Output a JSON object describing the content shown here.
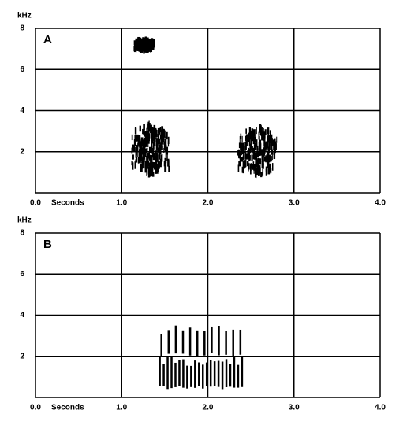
{
  "chart_data": [
    {
      "type": "spectrogram",
      "panel": "A",
      "ylabel": "kHz",
      "xlabel": "Seconds",
      "xlim": [
        0,
        4
      ],
      "ylim": [
        0,
        8
      ],
      "xticks": [
        {
          "value": 0,
          "label": "0.0"
        },
        {
          "value": 1,
          "label": "1.0"
        },
        {
          "value": 2,
          "label": "2.0"
        },
        {
          "value": 3,
          "label": "3.0"
        },
        {
          "value": 4,
          "label": "4.0"
        }
      ],
      "yticks": [
        2,
        4,
        6,
        8
      ],
      "grid": true,
      "color": "#000000",
      "events": [
        {
          "x": [
            1.15,
            1.38
          ],
          "y": [
            6.9,
            7.4
          ]
        },
        {
          "x": [
            1.12,
            1.55
          ],
          "y": [
            0.8,
            3.3
          ]
        },
        {
          "x": [
            2.35,
            2.8
          ],
          "y": [
            0.8,
            3.2
          ]
        }
      ]
    },
    {
      "type": "spectrogram",
      "panel": "B",
      "ylabel": "kHz",
      "xlabel": "Seconds",
      "xlim": [
        0,
        4
      ],
      "ylim": [
        0,
        8
      ],
      "xticks": [
        {
          "value": 0,
          "label": "0.0"
        },
        {
          "value": 1,
          "label": "1.0"
        },
        {
          "value": 2,
          "label": "2.0"
        },
        {
          "value": 3,
          "label": "3.0"
        },
        {
          "value": 4,
          "label": "4.0"
        }
      ],
      "yticks": [
        2,
        4,
        6,
        8
      ],
      "grid": true,
      "color": "#000000",
      "events": [
        {
          "x": [
            1.42,
            2.42
          ],
          "y": [
            0.4,
            2.0
          ],
          "pulses": 22
        },
        {
          "x": [
            1.42,
            2.42
          ],
          "y": [
            2.0,
            3.5
          ],
          "pulses": 12
        }
      ]
    }
  ]
}
